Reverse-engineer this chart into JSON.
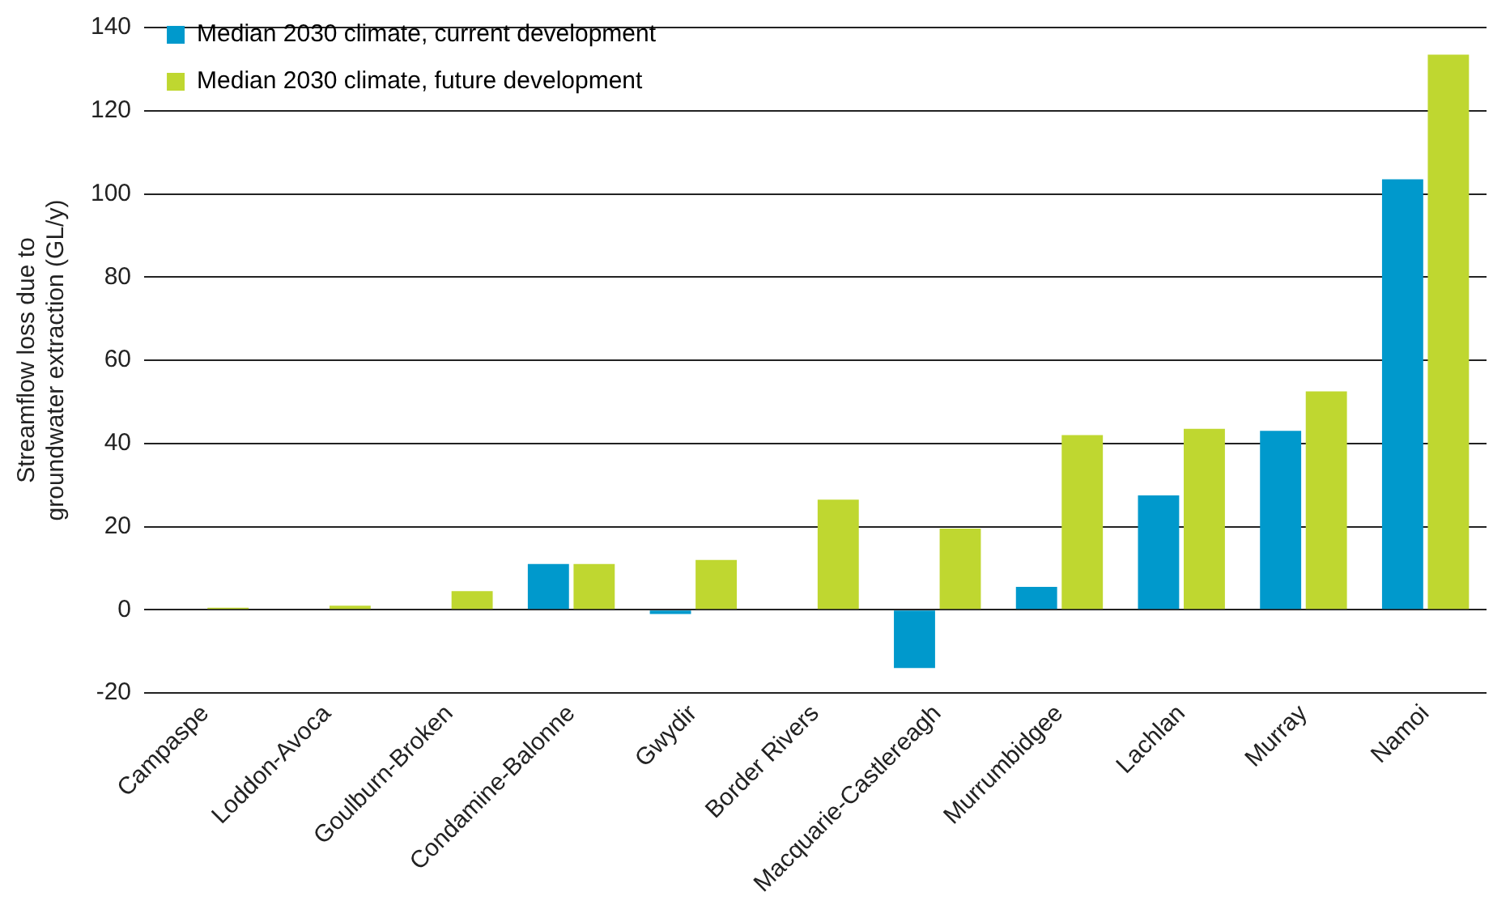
{
  "chart_data": {
    "type": "bar",
    "ylabel": "Streamflow loss due to\ngroundwater extraction (GL/y)",
    "categories": [
      "Campaspe",
      "Loddon-Avoca",
      "Goulburn-Broken",
      "Condamine-Balonne",
      "Gwydir",
      "Border Rivers",
      "Macquarie-Castlereagh",
      "Murrumbidgee",
      "Lachlan",
      "Murray",
      "Namoi"
    ],
    "series": [
      {
        "name": "Median 2030 climate, current development",
        "color": "#0099cc",
        "values": [
          0,
          0,
          0,
          11,
          -1,
          0,
          -14,
          5.5,
          27.5,
          43,
          103.5
        ]
      },
      {
        "name": "Median 2030 climate, future development",
        "color": "#bfd730",
        "values": [
          0.5,
          1,
          4.5,
          11,
          12,
          26.5,
          19.5,
          42,
          43.5,
          52.5,
          133.5
        ]
      }
    ],
    "ylim": [
      -20,
      140
    ],
    "yticks": [
      -20,
      0,
      20,
      40,
      60,
      80,
      100,
      120,
      140
    ],
    "grid": "y",
    "legend": "top left"
  }
}
